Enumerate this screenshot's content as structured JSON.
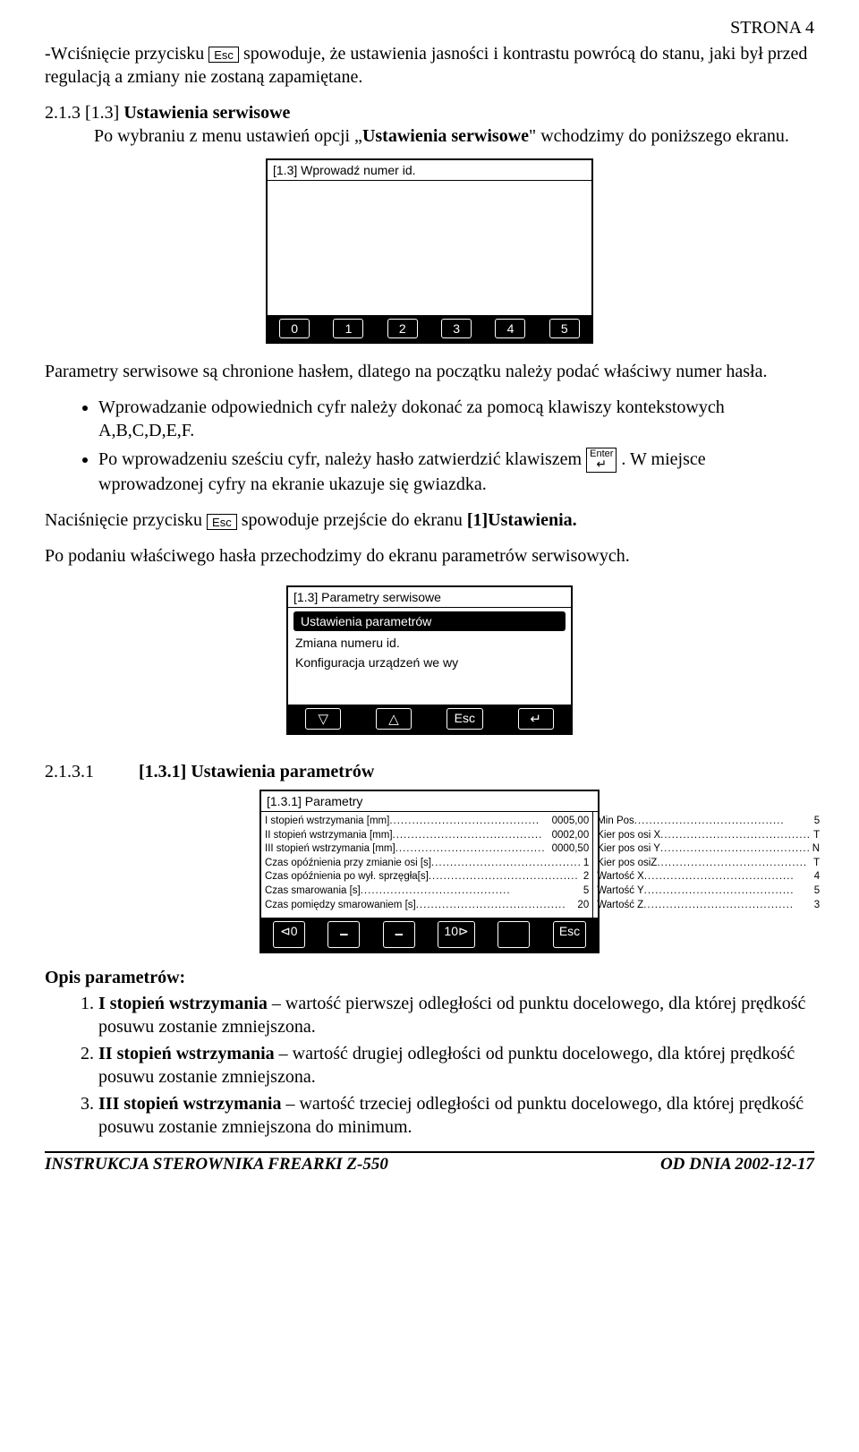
{
  "page_header_right": "STRONA 4",
  "esc_label": "Esc",
  "enter_label": "Enter",
  "p1_a": "-Wciśnięcie przycisku ",
  "p1_b": " spowoduje, że ustawienia jasności i kontrastu powrócą do stanu, jaki był przed regulacją a zmiany nie zostaną zapamiętane.",
  "h1_num": "2.1.3  [1.3] ",
  "h1_title": "Ustawienia serwisowe",
  "h1_body_a": "Po wybraniu z menu ustawień opcji „",
  "h1_body_b": "Ustawienia serwisowe",
  "h1_body_c": "\" wchodzimy do poniższego ekranu.",
  "screen1": {
    "title": "[1.3] Wprowadź  numer  id.",
    "buttons": [
      "0",
      "1",
      "2",
      "3",
      "4",
      "5"
    ]
  },
  "p2": "Parametry serwisowe są chronione hasłem, dlatego na początku należy podać właściwy numer hasła.",
  "bullet1": "Wprowadzanie odpowiednich cyfr należy dokonać za pomocą klawiszy kontekstowych A,B,C,D,E,F.",
  "bullet2_a": "Po wprowadzeniu sześciu cyfr, należy hasło zatwierdzić klawiszem ",
  "bullet2_b": ". W miejsce wprowadzonej cyfry na ekranie ukazuje się gwiazdka.",
  "p3_a": "Naciśnięcie przycisku ",
  "p3_b": " spowoduje przejście do ekranu ",
  "p3_c": "[1]Ustawienia.",
  "p4": "Po podaniu właściwego hasła przechodzimy do ekranu parametrów serwisowych.",
  "screen2": {
    "title": "[1.3] Parametry serwisowe",
    "items": [
      "Ustawienia  parametrów",
      "Zmiana numeru id.",
      "Konfiguracja urządzeń we wy"
    ],
    "buttons": [
      "▽",
      "△",
      "Esc",
      "↵"
    ]
  },
  "h2_num": "2.1.3.1",
  "h2_title": "[1.3.1] Ustawienia parametrów",
  "screen3": {
    "title": "[1.3.1] Parametry",
    "left": [
      {
        "label": "I stopień wstrzymania [mm]",
        "val": "0005,00"
      },
      {
        "label": "II stopień wstrzymania [mm]",
        "val": "0002,00"
      },
      {
        "label": "III stopień wstrzymania [mm]",
        "val": "0000,50"
      },
      {
        "label": "Czas opóźnienia przy zmianie osi [s]",
        "val": "1"
      },
      {
        "label": "Czas opóźnienia po wył. sprzęgła[s]",
        "val": "2"
      },
      {
        "label": "Czas smarowania [s]",
        "val": "5"
      },
      {
        "label": "Czas pomiędzy smarowaniem [s]",
        "val": "20"
      }
    ],
    "right": [
      {
        "label": "Min Pos",
        "val": "5"
      },
      {
        "label": "Kier pos osi X",
        "val": "T"
      },
      {
        "label": "Kier pos osi Y",
        "val": "N"
      },
      {
        "label": "Kier pos osiZ",
        "val": "T"
      },
      {
        "label": "Wartość X",
        "val": "4"
      },
      {
        "label": "Wartość Y",
        "val": "5"
      },
      {
        "label": "Wartość Z",
        "val": "3"
      }
    ],
    "buttons": [
      "⊲0",
      "🗕",
      "🗕",
      "10⊳",
      "",
      "Esc"
    ]
  },
  "opis_label": "Opis parametrów:",
  "desc": [
    {
      "bold": "I stopień wstrzymania",
      "text": " – wartość pierwszej odległości od punktu docelowego, dla której prędkość posuwu zostanie zmniejszona."
    },
    {
      "bold": "II stopień wstrzymania",
      "text": " – wartość drugiej odległości od punktu docelowego, dla której prędkość posuwu zostanie zmniejszona."
    },
    {
      "bold": "III stopień wstrzymania",
      "text": " – wartość trzeciej odległości od punktu docelowego, dla której prędkość posuwu zostanie zmniejszona do minimum."
    }
  ],
  "footer_left": "INSTRUKCJA STEROWNIKA FREARKI  Z-550",
  "footer_right": "OD DNIA 2002-12-17"
}
